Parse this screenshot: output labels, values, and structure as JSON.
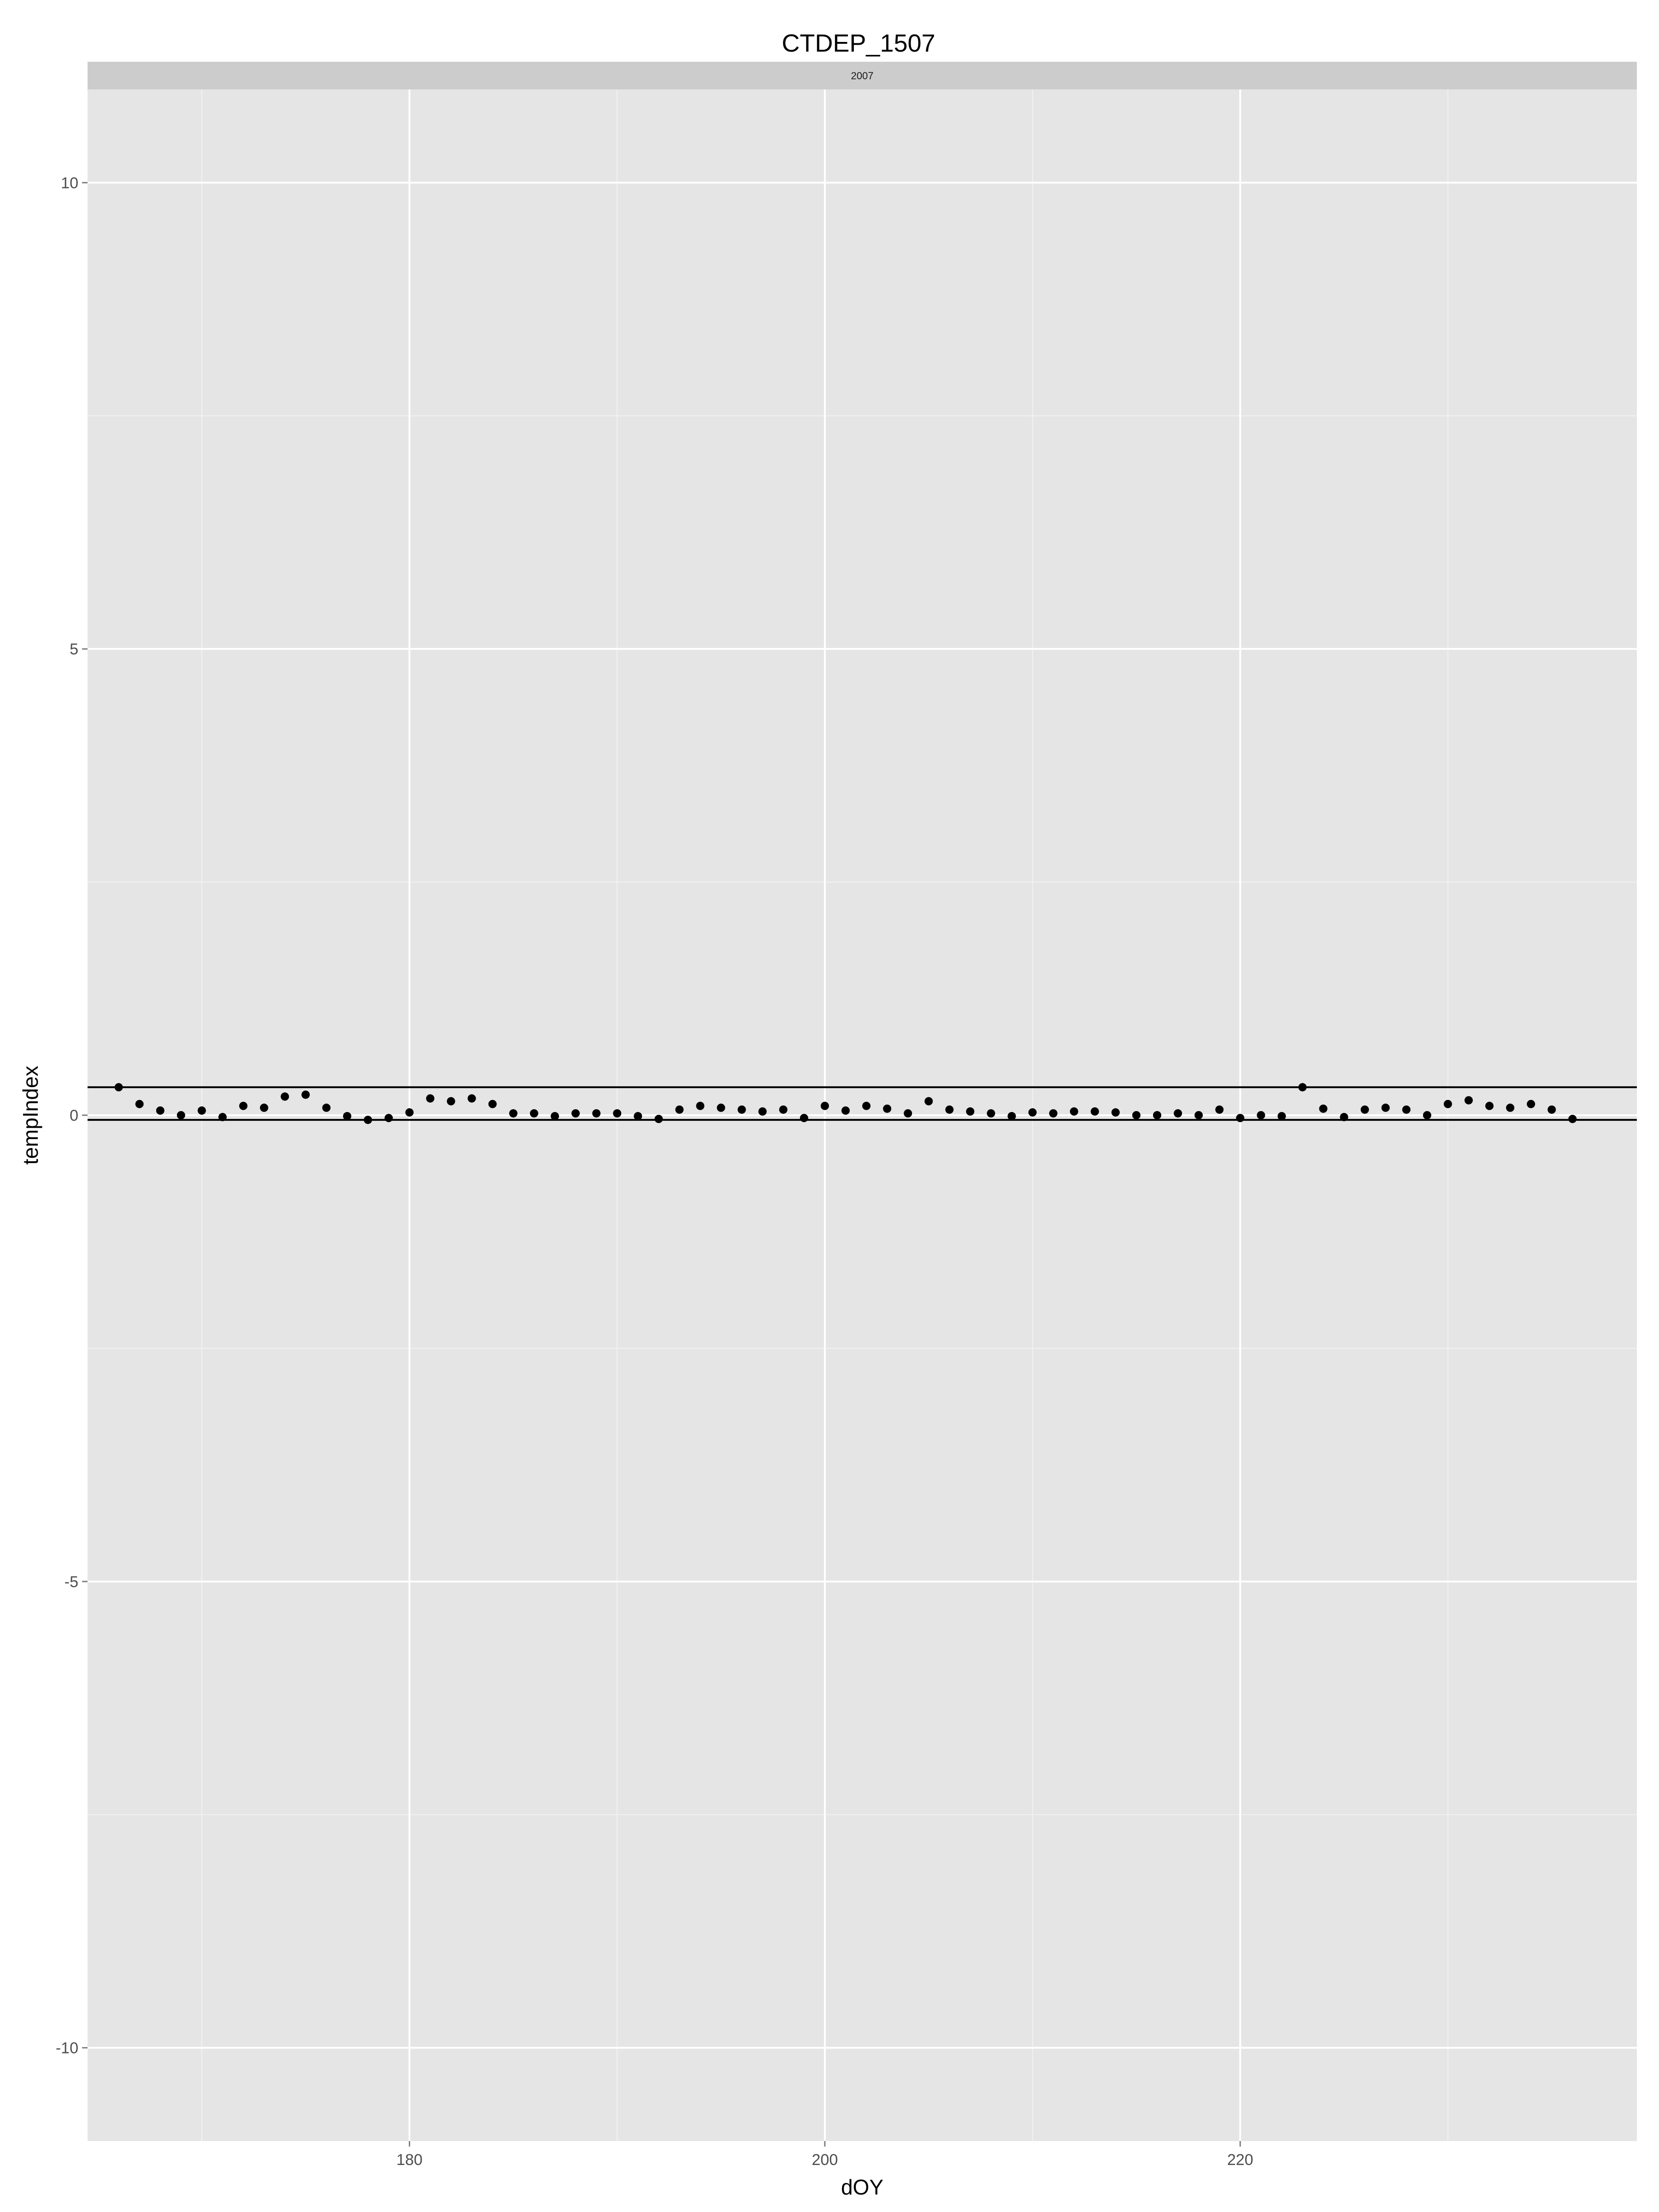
{
  "chart_data": {
    "type": "scatter",
    "title": "CTDEP_1507",
    "facet_label": "2007",
    "xlabel": "dOY",
    "ylabel": "tempIndex",
    "xlim": [
      164.5,
      239.1
    ],
    "ylim": [
      -11,
      11
    ],
    "x_ticks": [
      180,
      200,
      220
    ],
    "x_tick_labels": [
      "180",
      "200",
      "220"
    ],
    "y_ticks": [
      10,
      5,
      0,
      -5,
      -10
    ],
    "y_tick_labels": [
      "10",
      "5",
      "0",
      "-5",
      "-10"
    ],
    "hlines": [
      0.3,
      -0.05
    ],
    "grid": true,
    "panel_background": "#e5e5e5",
    "strip_background": "#cccccc",
    "grid_major_color": "#ffffff",
    "grid_minor_color": "#f2f2f2",
    "point_color": "#000000",
    "line_color": "#000000",
    "series": [
      {
        "x": [
          166,
          167,
          168,
          169,
          170,
          171,
          172,
          173,
          174,
          175,
          176,
          177,
          178,
          179,
          180,
          181,
          182,
          183,
          184,
          185,
          186,
          187,
          188,
          189,
          190,
          191,
          192,
          193,
          194,
          195,
          196,
          197,
          198,
          199,
          200,
          201,
          202,
          203,
          204,
          205,
          206,
          207,
          208,
          209,
          210,
          211,
          212,
          213,
          214,
          215,
          216,
          217,
          218,
          219,
          220,
          221,
          222,
          223,
          224,
          225,
          226,
          227,
          228,
          229,
          230,
          231,
          232,
          233,
          234,
          235,
          236
        ],
        "y": [
          0.3,
          0.12,
          0.05,
          0,
          0.05,
          -0.02,
          0.1,
          0.08,
          0.2,
          0.22,
          0.08,
          -0.01,
          -0.05,
          -0.03,
          0.03,
          0.18,
          0.15,
          0.18,
          0.12,
          0.02,
          0.02,
          -0.01,
          0.02,
          0.02,
          0.02,
          -0.01,
          -0.04,
          0.06,
          0.1,
          0.08,
          0.06,
          0.04,
          0.06,
          -0.03,
          0.1,
          0.05,
          0.1,
          0.07,
          0.02,
          0.15,
          0.06,
          0.04,
          0.02,
          -0.01,
          0.03,
          0.02,
          0.04,
          0.04,
          0.03,
          0,
          0,
          0.02,
          0,
          0.06,
          -0.03,
          0,
          -0.01,
          0.3,
          0.07,
          -0.02,
          0.06,
          0.08,
          0.06,
          0,
          0.12,
          0.16,
          0.1,
          0.08,
          0.12,
          0.06,
          -0.04
        ]
      }
    ]
  }
}
